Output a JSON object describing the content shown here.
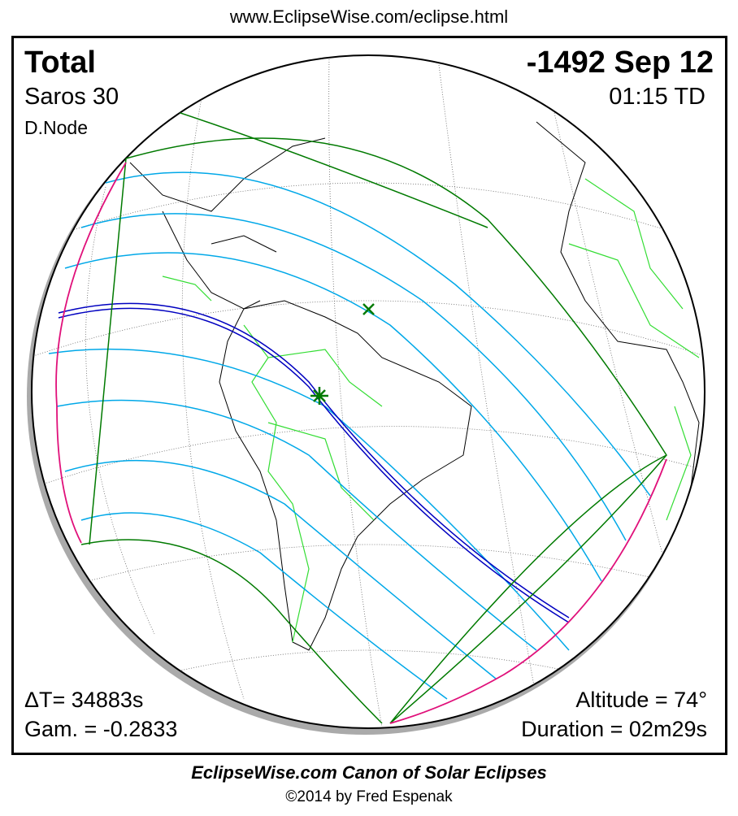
{
  "header": {
    "url": "www.EclipseWise.com/eclipse.html"
  },
  "info": {
    "eclipse_type": "Total",
    "saros": "Saros  30",
    "node": "D.Node",
    "date": "-1492 Sep 12",
    "time": "01:15 TD",
    "delta_t": "ΔT=  34883s",
    "gamma": "Gam. = -0.2833",
    "altitude": "Altitude = 74°",
    "duration": "Duration = 02m29s"
  },
  "footer": {
    "canon": "EclipseWise.com Canon of Solar Eclipses",
    "copyright": "©2014 by Fred Espenak"
  },
  "colors": {
    "penumbral_limits": "#007a00",
    "partial_lines": "#00a8e8",
    "central_path": "#0000c0",
    "rise_set_curves": "#e0107a",
    "borders": "#33dd33",
    "coastlines": "#000000"
  },
  "markers": {
    "greatest_eclipse": "star-marker",
    "sub_solar_point": "x-marker"
  }
}
